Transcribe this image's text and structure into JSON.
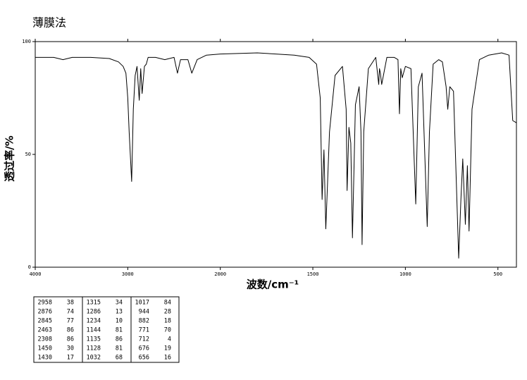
{
  "chart_data": {
    "type": "line",
    "title": "薄膜法",
    "x_label": "波数/cm⁻¹",
    "y_label": "透过率/%",
    "xlim": [
      4000,
      400
    ],
    "xticks": [
      4000,
      3000,
      2000,
      1500,
      1000,
      500
    ],
    "ylim": [
      0,
      100
    ],
    "yticks": [
      0,
      50,
      100
    ],
    "series": [
      {
        "color": "#000000",
        "x": [
          4000,
          3800,
          3700,
          3600,
          3400,
          3200,
          3100,
          3050,
          3020,
          3000,
          2985,
          2958,
          2940,
          2920,
          2900,
          2876,
          2860,
          2845,
          2820,
          2800,
          2780,
          2700,
          2600,
          2500,
          2463,
          2430,
          2350,
          2308,
          2250,
          2150,
          2000,
          1800,
          1700,
          1600,
          1520,
          1480,
          1460,
          1450,
          1440,
          1430,
          1410,
          1380,
          1340,
          1320,
          1315,
          1305,
          1295,
          1286,
          1270,
          1250,
          1240,
          1234,
          1225,
          1200,
          1160,
          1144,
          1140,
          1135,
          1128,
          1100,
          1060,
          1040,
          1032,
          1025,
          1017,
          1000,
          970,
          944,
          930,
          910,
          882,
          870,
          850,
          820,
          800,
          780,
          771,
          760,
          740,
          712,
          700,
          690,
          676,
          665,
          656,
          640,
          600,
          550,
          480,
          440,
          420,
          400
        ],
        "values": [
          93,
          93,
          92,
          93,
          93,
          92.5,
          91,
          89,
          86,
          75,
          60,
          38,
          70,
          85,
          89,
          74,
          88,
          77,
          89,
          90,
          93,
          93,
          92,
          93,
          86,
          92,
          92,
          86,
          92,
          94,
          94.5,
          95,
          94.5,
          94,
          93,
          90,
          75,
          30,
          52,
          17,
          60,
          85,
          89,
          70,
          34,
          62,
          55,
          13,
          72,
          80,
          60,
          10,
          60,
          88,
          93,
          81,
          88,
          86,
          81,
          93,
          93,
          92,
          68,
          88,
          84,
          89,
          88,
          28,
          80,
          86,
          18,
          60,
          90,
          92,
          91,
          80,
          70,
          80,
          78,
          4,
          30,
          48,
          19,
          45,
          16,
          70,
          92,
          94,
          95,
          94,
          65,
          64
        ]
      }
    ]
  },
  "table": {
    "rows": [
      [
        2958,
        38,
        1315,
        34,
        1017,
        84
      ],
      [
        2876,
        74,
        1286,
        13,
        944,
        28
      ],
      [
        2845,
        77,
        1234,
        10,
        882,
        18
      ],
      [
        2463,
        86,
        1144,
        81,
        771,
        70
      ],
      [
        2308,
        86,
        1135,
        86,
        712,
        4
      ],
      [
        1450,
        30,
        1128,
        81,
        676,
        19
      ],
      [
        1430,
        17,
        1032,
        68,
        656,
        16
      ]
    ]
  }
}
